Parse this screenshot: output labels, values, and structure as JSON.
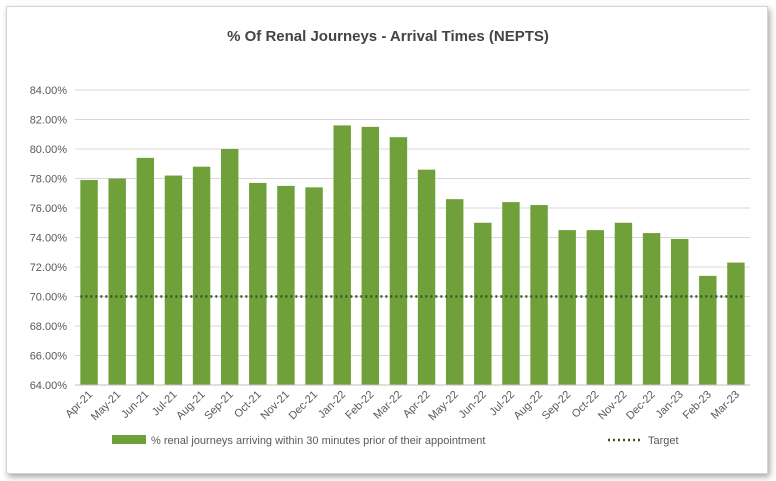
{
  "chart_data": {
    "type": "bar",
    "title": "% Of Renal Journeys - Arrival Times (NEPTS)",
    "xlabel": "",
    "ylabel": "",
    "categories": [
      "Apr-21",
      "May-21",
      "Jun-21",
      "Jul-21",
      "Aug-21",
      "Sep-21",
      "Oct-21",
      "Nov-21",
      "Dec-21",
      "Jan-22",
      "Feb-22",
      "Mar-22",
      "Apr-22",
      "May-22",
      "Jun-22",
      "Jul-22",
      "Aug-22",
      "Sep-22",
      "Oct-22",
      "Nov-22",
      "Dec-22",
      "Jan-23",
      "Feb-23",
      "Mar-23"
    ],
    "series": [
      {
        "name": "%  renal journeys arriving within 30 minutes prior of their appointment",
        "type": "bar",
        "color": "#70a03a",
        "values": [
          77.9,
          78.0,
          79.4,
          78.2,
          78.8,
          80.0,
          77.7,
          77.5,
          77.4,
          81.6,
          81.5,
          80.8,
          78.6,
          76.6,
          75.0,
          76.4,
          76.2,
          74.5,
          74.5,
          75.0,
          74.3,
          73.9,
          71.4,
          72.3
        ]
      },
      {
        "name": "Target",
        "type": "line",
        "style": "dotted",
        "color": "#375623",
        "values": [
          70,
          70,
          70,
          70,
          70,
          70,
          70,
          70,
          70,
          70,
          70,
          70,
          70,
          70,
          70,
          70,
          70,
          70,
          70,
          70,
          70,
          70,
          70,
          70
        ]
      }
    ],
    "ylim": [
      64,
      84
    ],
    "yticks": [
      "64.00%",
      "66.00%",
      "68.00%",
      "70.00%",
      "72.00%",
      "74.00%",
      "76.00%",
      "78.00%",
      "80.00%",
      "82.00%",
      "84.00%"
    ],
    "grid": true,
    "legend_position": "bottom"
  }
}
